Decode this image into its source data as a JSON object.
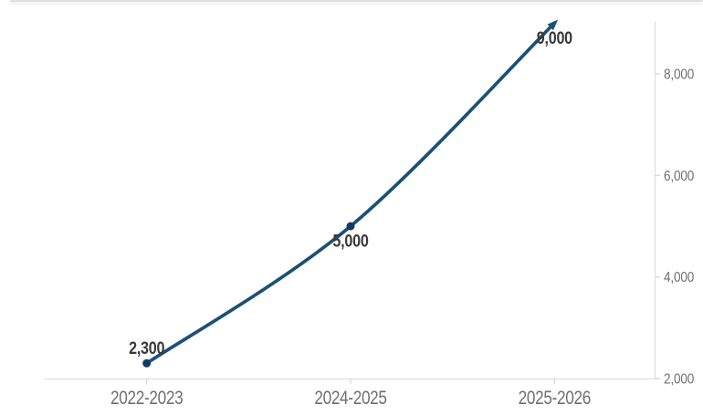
{
  "chart_data": {
    "type": "line",
    "title": "",
    "xlabel": "",
    "ylabel": "",
    "categories": [
      "2022-2023",
      "2024-2025",
      "2025-2026"
    ],
    "values": [
      2300,
      5000,
      9000
    ],
    "data_labels": [
      "2,300",
      "5,000",
      "9,000"
    ],
    "yticks": [
      2000,
      4000,
      6000,
      8000
    ],
    "ytick_labels": [
      "2,000",
      "4,000",
      "6,000",
      "8,000"
    ],
    "ylim": [
      2000,
      9050
    ],
    "y_axis_position": "right",
    "grid": false,
    "legend_position": "none",
    "smooth": true,
    "end_marker": "arrow",
    "colors": {
      "line": "#1c5075",
      "marker": "#143a63",
      "arrow": "#1c5075",
      "data_label_text": "#3a3a3a",
      "axis_text": "#6f6f6f",
      "axis_line": "#e2e2e2",
      "tick_line": "#d9d9d9",
      "top_border": "#e0e0e0",
      "background": "#ffffff"
    }
  }
}
